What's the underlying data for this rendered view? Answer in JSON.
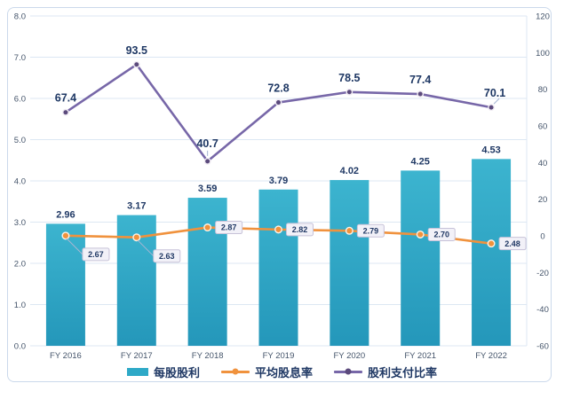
{
  "chart_data": {
    "type": "combo",
    "categories": [
      "FY 2016",
      "FY 2017",
      "FY 2018",
      "FY 2019",
      "FY 2020",
      "FY 2021",
      "FY 2022"
    ],
    "series": [
      {
        "name": "每股股利",
        "type": "bar",
        "axis": "left",
        "decimals": 2,
        "values": [
          2.96,
          3.17,
          3.59,
          3.79,
          4.02,
          4.25,
          4.53
        ]
      },
      {
        "name": "平均股息率",
        "type": "line",
        "axis": "left",
        "decimals": 2,
        "label_style": "boxed",
        "values": [
          2.67,
          2.63,
          2.87,
          2.82,
          2.79,
          2.7,
          2.48
        ]
      },
      {
        "name": "股利支付比率",
        "type": "line",
        "axis": "right",
        "decimals": 1,
        "label_style": "above",
        "values": [
          67.4,
          93.5,
          40.7,
          72.8,
          78.5,
          77.4,
          70.1
        ]
      }
    ],
    "left_axis": {
      "min": 0,
      "max": 8,
      "step": 1,
      "ticks": [
        "0.0",
        "1.0",
        "2.0",
        "3.0",
        "4.0",
        "5.0",
        "6.0",
        "7.0",
        "8.0"
      ]
    },
    "right_axis": {
      "min": -60,
      "max": 120,
      "step": 20,
      "ticks": [
        "-60",
        "-40",
        "-20",
        "0",
        "20",
        "40",
        "60",
        "80",
        "100",
        "120"
      ]
    },
    "grid": true,
    "legend_position": "bottom",
    "title": ""
  },
  "colors": {
    "grid": "#DCE7F3",
    "axis_text": "#44546A",
    "data_label": "#1F3864",
    "bar": "#2EA9C7",
    "bar_top": "#3CB4CF",
    "bar_bottom": "#2497BA",
    "orange": "#F0923D",
    "purple": "#7767A8",
    "purple_marker": "#5B4A7C",
    "marker_ring": "#EFEAF2",
    "callout_bg": "#F2F1F8",
    "callout_border": "#C7C2D8",
    "leader": "#A7B6D3",
    "frame_border": "#CBD9EB"
  }
}
